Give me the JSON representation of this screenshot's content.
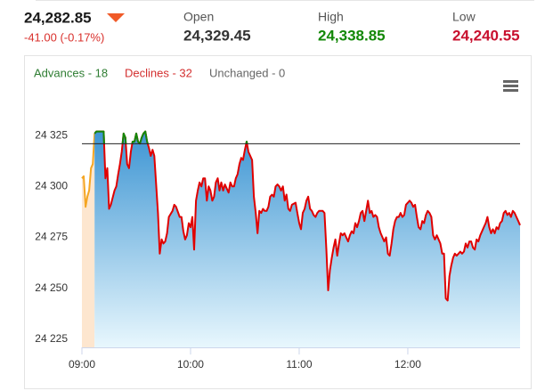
{
  "header": {
    "price": "24,282.85",
    "price_color": "#1a1a1a",
    "change": "-41.00 (-0.17%)",
    "change_color": "#d9302c",
    "stats": [
      {
        "label": "Open",
        "value": "24,329.45",
        "color": "#333333"
      },
      {
        "label": "High",
        "value": "24,338.85",
        "color": "#138808"
      },
      {
        "label": "Low",
        "value": "24,240.55",
        "color": "#c8102e"
      }
    ]
  },
  "chart_data": {
    "type": "line",
    "summary": [
      {
        "text": "Advances - 18",
        "color": "#2e7d32"
      },
      {
        "text": "Declines - 32",
        "color": "#d32f2f"
      },
      {
        "text": "Unchanged - 0",
        "color": "#666666"
      }
    ],
    "xlim": [
      "09:00",
      "13:02"
    ],
    "xticks": [
      "09:00",
      "10:00",
      "11:00",
      "12:00"
    ],
    "ylim": [
      24221,
      24350
    ],
    "yticks": [
      {
        "value": 24225,
        "label": "24 225"
      },
      {
        "value": 24250,
        "label": "24 250"
      },
      {
        "value": 24275,
        "label": "24 275"
      },
      {
        "value": 24300,
        "label": "24 300"
      },
      {
        "value": 24325,
        "label": "24 325"
      }
    ],
    "grid": false,
    "reference_line": 24321,
    "series": [
      {
        "color": "#f5a623",
        "fill": "#fde6cf",
        "x": [
          "09:00",
          "09:01",
          "09:02",
          "09:03",
          "09:04",
          "09:05",
          "09:06",
          "09:07"
        ],
        "values": [
          24304,
          24305,
          24290,
          24295,
          24298,
          24309,
          24311,
          24326
        ]
      },
      {
        "color": "#e00000",
        "above_color": "#138808",
        "fill_gradient": [
          "#3d95d3",
          "#e8f7fd"
        ],
        "x": [
          "09:07",
          "09:08",
          "09:10",
          "09:12",
          "09:13",
          "09:14",
          "09:15",
          "09:16",
          "09:18",
          "09:19",
          "09:20",
          "09:21",
          "09:22",
          "09:23",
          "09:24",
          "09:25",
          "09:26",
          "09:27",
          "09:28",
          "09:29",
          "09:30",
          "09:31",
          "09:32",
          "09:33",
          "09:34",
          "09:35",
          "09:36",
          "09:37",
          "09:38",
          "09:39",
          "09:40",
          "09:42",
          "09:43",
          "09:44",
          "09:45",
          "09:46",
          "09:47",
          "09:48",
          "09:50",
          "09:51",
          "09:52",
          "09:54",
          "09:55",
          "09:56",
          "09:57",
          "09:58",
          "09:59",
          "10:00",
          "10:01",
          "10:02",
          "10:03",
          "10:04",
          "10:05",
          "10:06",
          "10:07",
          "10:08",
          "10:09",
          "10:10",
          "10:11",
          "10:12",
          "10:13",
          "10:14",
          "10:15",
          "10:16",
          "10:17",
          "10:18",
          "10:19",
          "10:20",
          "10:21",
          "10:22",
          "10:23",
          "10:24",
          "10:25",
          "10:26",
          "10:27",
          "10:28",
          "10:29",
          "10:30",
          "10:31",
          "10:32",
          "10:34",
          "10:35",
          "10:36",
          "10:37",
          "10:38",
          "10:39",
          "10:40",
          "10:41",
          "10:42",
          "10:43",
          "10:44",
          "10:45",
          "10:46",
          "10:47",
          "10:48",
          "10:49",
          "10:50",
          "10:51",
          "10:52",
          "10:53",
          "10:54",
          "10:55",
          "10:56",
          "10:58",
          "10:59",
          "11:00",
          "11:01",
          "11:02",
          "11:03",
          "11:04",
          "11:05",
          "11:06",
          "11:07",
          "11:08",
          "11:09",
          "11:10",
          "11:11",
          "11:12",
          "11:13",
          "11:14",
          "11:15",
          "11:16",
          "11:17",
          "11:18",
          "11:19",
          "11:20",
          "11:21",
          "11:22",
          "11:23",
          "11:24",
          "11:25",
          "11:26",
          "11:27",
          "11:28",
          "11:29",
          "11:30",
          "11:31",
          "11:32",
          "11:33",
          "11:34",
          "11:35",
          "11:36",
          "11:37",
          "11:38",
          "11:39",
          "11:40",
          "11:41",
          "11:42",
          "11:43",
          "11:44",
          "11:45",
          "11:46",
          "11:47",
          "11:48",
          "11:49",
          "11:50",
          "11:51",
          "11:52",
          "11:53",
          "11:54",
          "11:55",
          "11:56",
          "11:57",
          "11:58",
          "11:59",
          "12:00",
          "12:01",
          "12:02",
          "12:03",
          "12:04",
          "12:05",
          "12:06",
          "12:07",
          "12:08",
          "12:09",
          "12:10",
          "12:11",
          "12:12",
          "12:13",
          "12:14",
          "12:15",
          "12:16",
          "12:17",
          "12:18",
          "12:19",
          "12:20",
          "12:21",
          "12:22",
          "12:23",
          "12:24",
          "12:25",
          "12:26",
          "12:27",
          "12:28",
          "12:29",
          "12:30",
          "12:31",
          "12:32",
          "12:33",
          "12:34",
          "12:35",
          "12:36",
          "12:37",
          "12:38",
          "12:39",
          "12:40",
          "12:41",
          "12:42",
          "12:43",
          "12:44",
          "12:45",
          "12:46",
          "12:47",
          "12:48",
          "12:49",
          "12:50",
          "12:51",
          "12:52",
          "12:53",
          "12:54",
          "12:55",
          "12:56",
          "12:57",
          "12:58",
          "12:59",
          "13:00",
          "13:01",
          "13:02"
        ],
        "values": [
          24326,
          24327,
          24327,
          24327,
          24304,
          24309,
          24289,
          24291,
          24298,
          24300,
          24306,
          24311,
          24317,
          24326,
          24324,
          24311,
          24309,
          24317,
          24322,
          24322,
          24326,
          24322,
          24321,
          24324,
          24326,
          24327,
          24322,
          24319,
          24315,
          24318,
          24315,
          24287,
          24267,
          24274,
          24272,
          24273,
          24277,
          24285,
          24288,
          24291,
          24290,
          24285,
          24285,
          24278,
          24274,
          24276,
          24282,
          24280,
          24285,
          24269,
          24293,
          24298,
          24302,
          24300,
          24304,
          24304,
          24293,
          24300,
          24298,
          24293,
          24295,
          24302,
          24304,
          24298,
          24302,
          24298,
          24301,
          24299,
          24297,
          24302,
          24300,
          24300,
          24304,
          24306,
          24311,
          24314,
          24313,
          24318,
          24322,
          24317,
          24313,
          24295,
          24287,
          24277,
          24288,
          24287,
          24289,
          24288,
          24288,
          24290,
          24295,
          24296,
          24295,
          24300,
          24301,
          24300,
          24298,
          24300,
          24293,
          24296,
          24289,
          24288,
          24291,
          24292,
          24287,
          24282,
          24279,
          24287,
          24289,
          24293,
          24295,
          24289,
          24288,
          24286,
          24285,
          24287,
          24288,
          24288,
          24288,
          24287,
          24269,
          24249,
          24259,
          24265,
          24270,
          24274,
          24266,
          24272,
          24277,
          24276,
          24277,
          24275,
          24273,
          24276,
          24278,
          24277,
          24282,
          24280,
          24283,
          24287,
          24288,
          24283,
          24288,
          24293,
          24287,
          24288,
          24285,
          24286,
          24285,
          24280,
          24277,
          24275,
          24273,
          24275,
          24267,
          24266,
          24272,
          24279,
          24283,
          24285,
          24285,
          24287,
          24285,
          24286,
          24291,
          24292,
          24293,
          24292,
          24290,
          24291,
          24285,
          24280,
          24279,
          24283,
          24282,
          24286,
          24288,
          24287,
          24285,
          24276,
          24274,
          24276,
          24274,
          24272,
          24267,
          24267,
          24245,
          24244,
          24256,
          24261,
          24265,
          24267,
          24266,
          24267,
          24268,
          24267,
          24268,
          24272,
          24270,
          24273,
          24273,
          24270,
          24269,
          24274,
          24273,
          24276,
          24278,
          24280,
          24282,
          24285,
          24280,
          24277,
          24279,
          24277,
          24280,
          24279,
          24282,
          24283,
          24287,
          24288,
          24286,
          24287,
          24285,
          24288,
          24287,
          24285,
          24283,
          24281
        ]
      }
    ]
  }
}
